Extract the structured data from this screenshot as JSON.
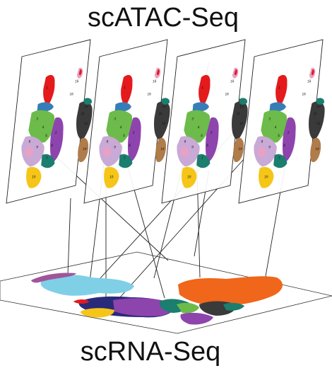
{
  "titles": {
    "top": "scATAC-Seq",
    "bottom": "scRNA-Seq"
  },
  "atac_panel_count": 4,
  "colors": {
    "red": "#e41a1c",
    "blue": "#377eb8",
    "green": "#6dbb4a",
    "purple": "#8e44ad",
    "lilac": "#c9a9d6",
    "pink": "#e7a1c6",
    "teal": "#1b7e6e",
    "yellow": "#f5c518",
    "dark": "#3a3a3a",
    "brown": "#b07c4a",
    "sky": "#7fd0e6",
    "orange": "#f0661a",
    "magenta": "#a0559a",
    "navy": "#2a2a7a"
  }
}
